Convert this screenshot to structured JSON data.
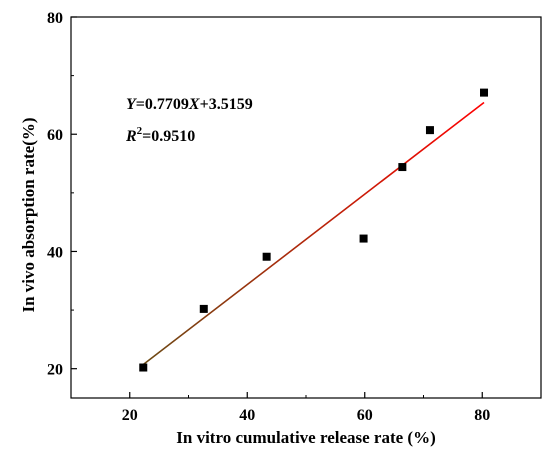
{
  "chart_data": {
    "type": "scatter",
    "xlabel": "In vitro cumulative release rate (%)",
    "ylabel": "In vivo absorption rate(%)",
    "xlim": [
      10,
      90
    ],
    "ylim": [
      15,
      80
    ],
    "xticks": [
      20,
      40,
      60,
      80
    ],
    "yticks": [
      20,
      40,
      60,
      80
    ],
    "grid": false,
    "points": [
      {
        "x": 22.3,
        "y": 20.2
      },
      {
        "x": 32.6,
        "y": 30.2
      },
      {
        "x": 43.3,
        "y": 39.1
      },
      {
        "x": 59.8,
        "y": 42.2
      },
      {
        "x": 66.4,
        "y": 54.4
      },
      {
        "x": 71.1,
        "y": 60.7
      },
      {
        "x": 80.3,
        "y": 67.1
      }
    ],
    "fit": {
      "slope": 0.7709,
      "intercept": 3.5159,
      "x_range": [
        22.3,
        80.3
      ],
      "color_start": "#6b4a14",
      "color_end": "#ff0000"
    },
    "marker": {
      "shape": "square",
      "color": "#000000"
    },
    "annotation": {
      "equation": {
        "y_var": "Y",
        "middle": "=0.7709",
        "x_var": "X",
        "rest": "+3.5159"
      },
      "r2": {
        "r": "R",
        "sup": "2",
        "value": "=0.9510"
      }
    }
  }
}
